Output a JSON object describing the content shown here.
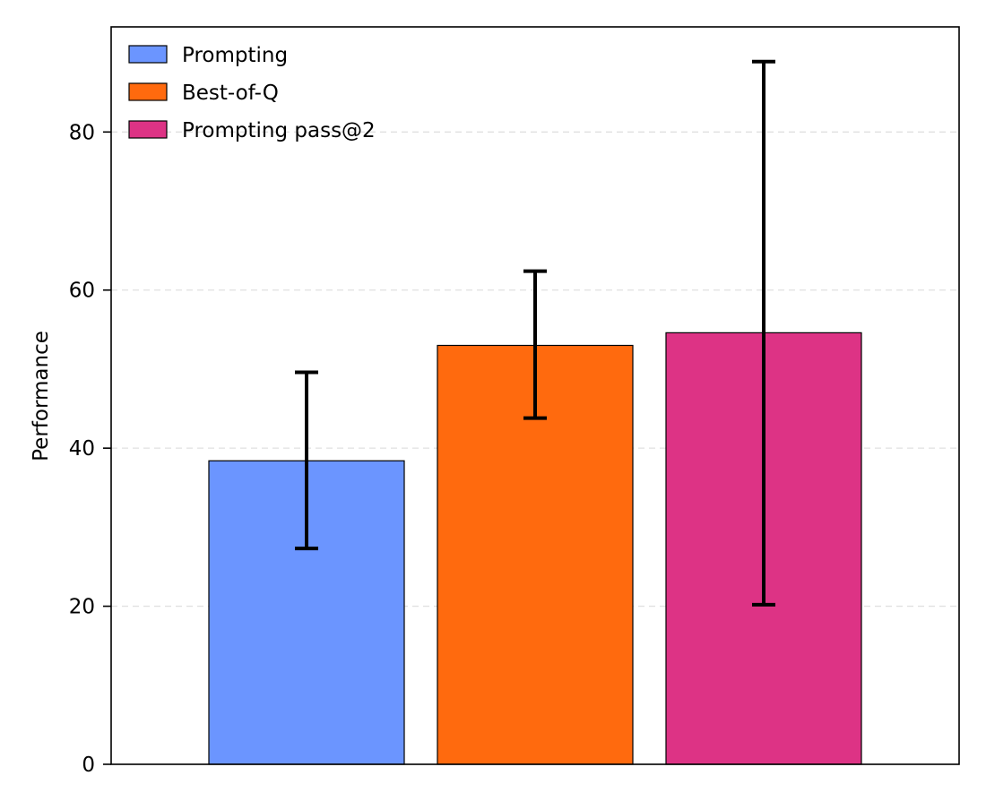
{
  "chart_data": {
    "type": "bar",
    "title": "",
    "xlabel": "",
    "ylabel": "Performance",
    "ylim": [
      0,
      93.3
    ],
    "yticks": [
      0,
      20,
      40,
      60,
      80
    ],
    "grid": "horizontal dashed",
    "legend_position": "top-left",
    "series": [
      {
        "name": "Prompting",
        "value": 38.4,
        "error_low": 27.3,
        "error_high": 49.6,
        "color": "#6b95ff"
      },
      {
        "name": "Best-of-Q",
        "value": 53.0,
        "error_low": 43.8,
        "error_high": 62.4,
        "color": "#ff6a0e"
      },
      {
        "name": "Prompting pass@2",
        "value": 54.6,
        "error_low": 20.2,
        "error_high": 88.9,
        "color": "#dd3385"
      }
    ]
  }
}
